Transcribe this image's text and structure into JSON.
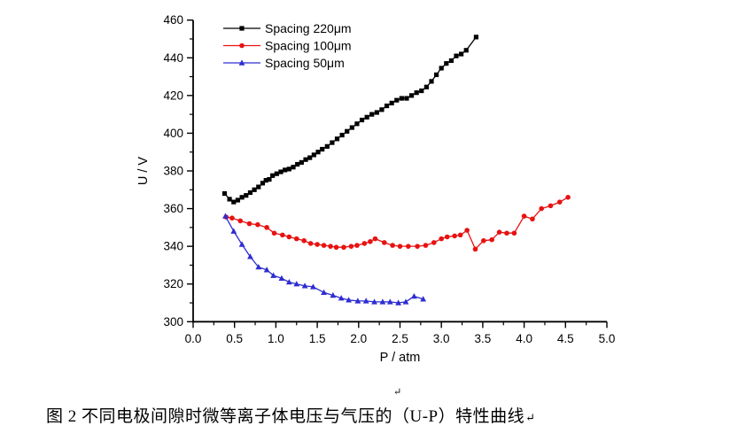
{
  "figure": {
    "caption": "图 2 不同电极间隙时微等离子体电压与气压的（U-P）特性曲线",
    "caption_end_mark": "↵",
    "floating_paragraph_mark": "↵"
  },
  "chart_data": {
    "type": "line",
    "title": "",
    "xlabel": "P / atm",
    "ylabel": "U / V",
    "xlim": [
      0.0,
      5.0
    ],
    "ylim": [
      300,
      460
    ],
    "x_major_ticks": [
      0.0,
      0.5,
      1.0,
      1.5,
      2.0,
      2.5,
      3.0,
      3.5,
      4.0,
      4.5,
      5.0
    ],
    "x_tick_labels": [
      "0.0",
      "0.5",
      "1.0",
      "1.5",
      "2.0",
      "2.5",
      "3.0",
      "3.5",
      "4.0",
      "4.5",
      "5.0"
    ],
    "x_minor_step": 0.25,
    "y_major_ticks": [
      300,
      320,
      340,
      360,
      380,
      400,
      420,
      440,
      460
    ],
    "y_minor_step": 10,
    "grid": false,
    "legend_position": "top-inside-left",
    "axis_color": "#000000",
    "series": [
      {
        "name": "Spacing 220μm",
        "color": "#000000",
        "marker": "square",
        "points": [
          [
            0.38,
            368
          ],
          [
            0.44,
            365
          ],
          [
            0.49,
            363.5
          ],
          [
            0.54,
            364.5
          ],
          [
            0.59,
            366
          ],
          [
            0.64,
            367
          ],
          [
            0.69,
            368.5
          ],
          [
            0.74,
            370
          ],
          [
            0.79,
            371.5
          ],
          [
            0.84,
            373.5
          ],
          [
            0.88,
            375
          ],
          [
            0.92,
            375.5
          ],
          [
            0.96,
            377.5
          ],
          [
            1.01,
            378.5
          ],
          [
            1.06,
            379.5
          ],
          [
            1.11,
            380.5
          ],
          [
            1.16,
            381
          ],
          [
            1.21,
            382
          ],
          [
            1.26,
            383.5
          ],
          [
            1.31,
            384.5
          ],
          [
            1.36,
            386
          ],
          [
            1.41,
            387
          ],
          [
            1.46,
            388.5
          ],
          [
            1.51,
            390
          ],
          [
            1.56,
            391.5
          ],
          [
            1.62,
            393
          ],
          [
            1.68,
            395
          ],
          [
            1.74,
            397
          ],
          [
            1.8,
            399
          ],
          [
            1.86,
            401
          ],
          [
            1.92,
            403
          ],
          [
            1.98,
            405
          ],
          [
            2.04,
            407
          ],
          [
            2.1,
            408.5
          ],
          [
            2.16,
            410
          ],
          [
            2.22,
            411
          ],
          [
            2.28,
            412.5
          ],
          [
            2.34,
            414.5
          ],
          [
            2.4,
            416
          ],
          [
            2.46,
            417.5
          ],
          [
            2.52,
            418.5
          ],
          [
            2.58,
            418.5
          ],
          [
            2.64,
            420
          ],
          [
            2.7,
            421.5
          ],
          [
            2.76,
            422.5
          ],
          [
            2.82,
            424.5
          ],
          [
            2.88,
            427.5
          ],
          [
            2.94,
            431
          ],
          [
            3.0,
            434.5
          ],
          [
            3.06,
            437
          ],
          [
            3.12,
            438.5
          ],
          [
            3.18,
            441
          ],
          [
            3.24,
            442
          ],
          [
            3.3,
            444
          ],
          [
            3.42,
            451
          ]
        ]
      },
      {
        "name": "Spacing 100μm",
        "color": "#e81212",
        "marker": "circle",
        "points": [
          [
            0.4,
            355.5
          ],
          [
            0.47,
            355
          ],
          [
            0.57,
            353.5
          ],
          [
            0.68,
            352
          ],
          [
            0.78,
            351.5
          ],
          [
            0.89,
            350
          ],
          [
            0.98,
            347
          ],
          [
            1.08,
            346
          ],
          [
            1.16,
            345
          ],
          [
            1.25,
            344
          ],
          [
            1.34,
            343
          ],
          [
            1.42,
            341.5
          ],
          [
            1.5,
            341
          ],
          [
            1.58,
            340.5
          ],
          [
            1.66,
            340
          ],
          [
            1.73,
            339.5
          ],
          [
            1.82,
            339.5
          ],
          [
            1.91,
            340
          ],
          [
            1.98,
            340.5
          ],
          [
            2.07,
            341.5
          ],
          [
            2.14,
            342.5
          ],
          [
            2.2,
            344
          ],
          [
            2.31,
            342
          ],
          [
            2.41,
            340.5
          ],
          [
            2.5,
            340
          ],
          [
            2.6,
            340
          ],
          [
            2.71,
            340
          ],
          [
            2.81,
            340.5
          ],
          [
            2.91,
            342
          ],
          [
            3.0,
            344
          ],
          [
            3.07,
            345
          ],
          [
            3.16,
            345.5
          ],
          [
            3.23,
            346
          ],
          [
            3.31,
            348.5
          ],
          [
            3.41,
            338.5
          ],
          [
            3.51,
            343
          ],
          [
            3.61,
            343.5
          ],
          [
            3.7,
            347.5
          ],
          [
            3.79,
            347
          ],
          [
            3.88,
            347
          ],
          [
            4.0,
            356
          ],
          [
            4.1,
            354.5
          ],
          [
            4.21,
            360
          ],
          [
            4.32,
            361.5
          ],
          [
            4.43,
            363.5
          ],
          [
            4.53,
            366
          ]
        ]
      },
      {
        "name": "Spacing 50μm",
        "color": "#2d2dd2",
        "marker": "triangle",
        "points": [
          [
            0.39,
            356
          ],
          [
            0.49,
            348
          ],
          [
            0.59,
            341
          ],
          [
            0.69,
            334.5
          ],
          [
            0.79,
            329
          ],
          [
            0.89,
            327.5
          ],
          [
            0.97,
            324.5
          ],
          [
            1.07,
            323
          ],
          [
            1.16,
            321
          ],
          [
            1.25,
            320
          ],
          [
            1.35,
            319
          ],
          [
            1.45,
            318.5
          ],
          [
            1.58,
            315.5
          ],
          [
            1.69,
            314
          ],
          [
            1.79,
            312.5
          ],
          [
            1.88,
            311.5
          ],
          [
            1.99,
            311
          ],
          [
            2.09,
            311
          ],
          [
            2.19,
            310.5
          ],
          [
            2.29,
            310.5
          ],
          [
            2.38,
            310.5
          ],
          [
            2.48,
            310
          ],
          [
            2.57,
            310.5
          ],
          [
            2.67,
            313.5
          ],
          [
            2.78,
            312
          ]
        ]
      }
    ]
  }
}
